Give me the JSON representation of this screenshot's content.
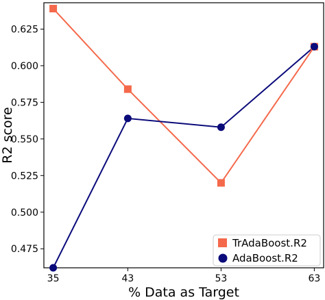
{
  "chart_data": {
    "type": "line",
    "xlabel": "% Data as Target",
    "ylabel": "R2 score",
    "x": [
      35,
      43,
      53,
      63
    ],
    "xlim": [
      34,
      64
    ],
    "ylim": [
      0.462,
      0.643
    ],
    "x_ticks": [
      35,
      43,
      53,
      63
    ],
    "y_ticks": [
      0.475,
      0.5,
      0.525,
      0.55,
      0.575,
      0.6,
      0.625
    ],
    "y_tick_labels": [
      "0.475",
      "0.500",
      "0.525",
      "0.550",
      "0.575",
      "0.600",
      "0.625"
    ],
    "grid": false,
    "legend_position": "bottom-right",
    "series": [
      {
        "name": "TrAdaBoost.R2",
        "color": "#f4694b",
        "marker": "square",
        "values": [
          0.639,
          0.584,
          0.52,
          0.613
        ]
      },
      {
        "name": "AdaBoost.R2",
        "color": "#0a0a7a",
        "marker": "circle",
        "values": [
          0.462,
          0.564,
          0.558,
          0.613
        ]
      }
    ]
  }
}
